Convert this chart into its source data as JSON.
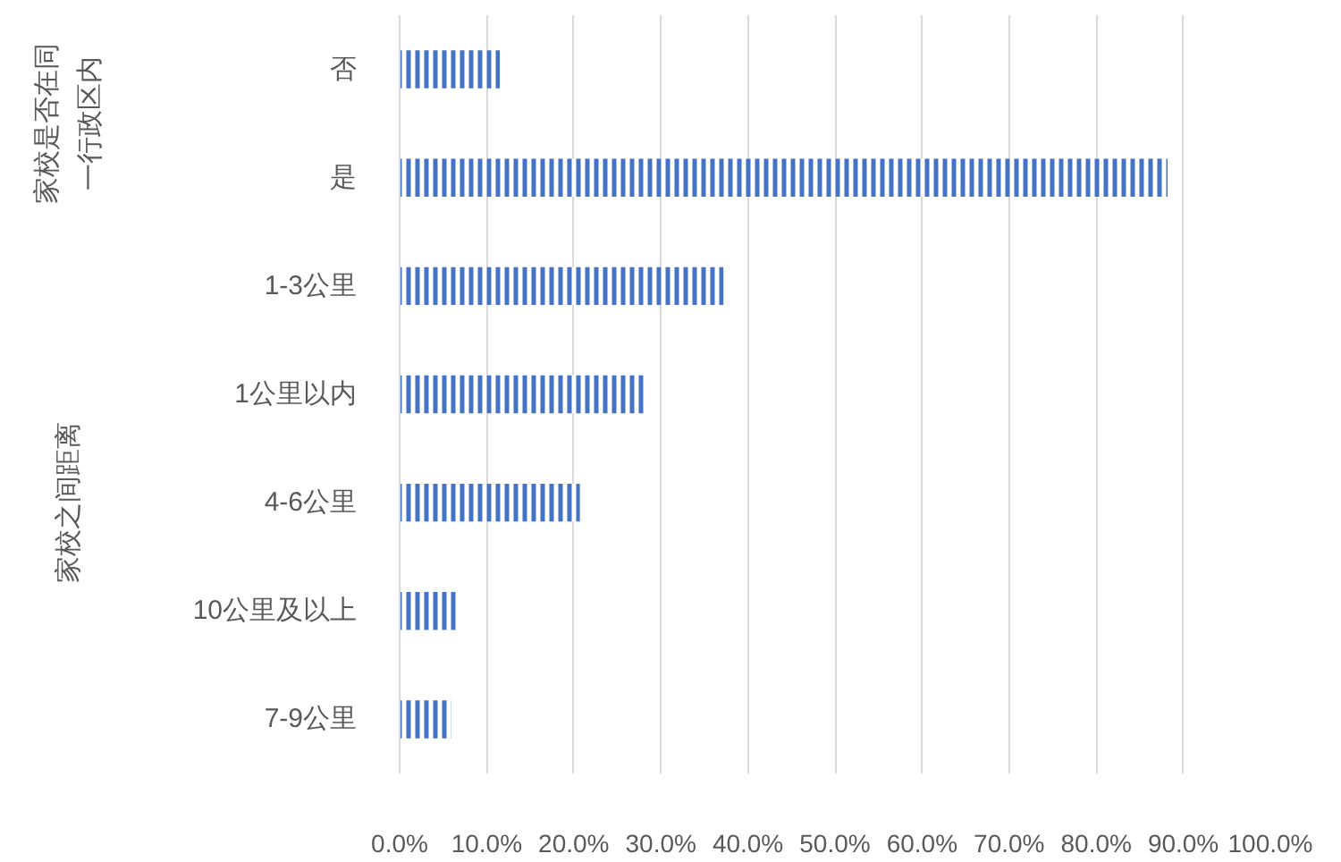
{
  "chart_data": {
    "type": "bar",
    "orientation": "horizontal",
    "categories": [
      "否",
      "是",
      "1-3公里",
      "1公里以内",
      "4-6公里",
      "10公里及以上",
      "7-9公里"
    ],
    "values": [
      11.5,
      88.2,
      37.2,
      28.3,
      20.7,
      6.7,
      5.9
    ],
    "color": "#4472c4",
    "xlim": [
      0,
      100
    ],
    "xticks": [
      {
        "value": 0,
        "label": "0.0%"
      },
      {
        "value": 10,
        "label": "10.0%"
      },
      {
        "value": 20,
        "label": "20.0%"
      },
      {
        "value": 30,
        "label": "30.0%"
      },
      {
        "value": 40,
        "label": "40.0%"
      },
      {
        "value": 50,
        "label": "50.0%"
      },
      {
        "value": 60,
        "label": "60.0%"
      },
      {
        "value": 70,
        "label": "70.0%"
      },
      {
        "value": 80,
        "label": "80.0%"
      },
      {
        "value": 90,
        "label": "90.0%"
      },
      {
        "value": 100,
        "label": "100.0%"
      }
    ],
    "grid": "x",
    "annotations": [
      "家校是否在同一行政区内",
      "家校之间距离"
    ]
  }
}
